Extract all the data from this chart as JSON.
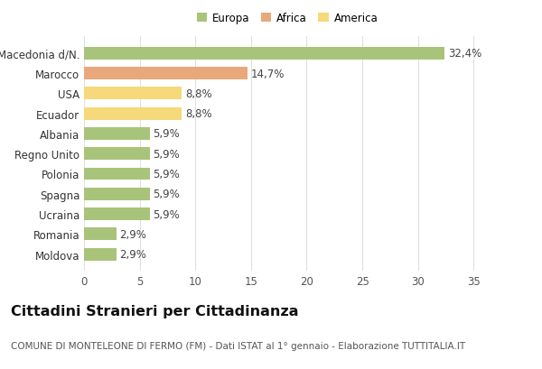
{
  "labels": [
    "Moldova",
    "Romania",
    "Ucraina",
    "Spagna",
    "Polonia",
    "Regno Unito",
    "Albania",
    "Ecuador",
    "USA",
    "Marocco",
    "Macedonia d/N."
  ],
  "values": [
    2.9,
    2.9,
    5.9,
    5.9,
    5.9,
    5.9,
    5.9,
    8.8,
    8.8,
    14.7,
    32.4
  ],
  "colors": [
    "#a8c47a",
    "#a8c47a",
    "#a8c47a",
    "#a8c47a",
    "#a8c47a",
    "#a8c47a",
    "#a8c47a",
    "#f5d97a",
    "#f5d97a",
    "#e8a87c",
    "#a8c47a"
  ],
  "bar_labels": [
    "2,9%",
    "2,9%",
    "5,9%",
    "5,9%",
    "5,9%",
    "5,9%",
    "5,9%",
    "8,8%",
    "8,8%",
    "14,7%",
    "32,4%"
  ],
  "legend": [
    {
      "label": "Europa",
      "color": "#a8c47a"
    },
    {
      "label": "Africa",
      "color": "#e8a87c"
    },
    {
      "label": "America",
      "color": "#f5d97a"
    }
  ],
  "xlim": [
    0,
    37
  ],
  "xticks": [
    0,
    5,
    10,
    15,
    20,
    25,
    30,
    35
  ],
  "title": "Cittadini Stranieri per Cittadinanza",
  "subtitle": "COMUNE DI MONTELEONE DI FERMO (FM) - Dati ISTAT al 1° gennaio - Elaborazione TUTTITALIA.IT",
  "background_color": "#ffffff",
  "grid_color": "#e0e0e0",
  "bar_height": 0.62,
  "label_fontsize": 8.5,
  "tick_fontsize": 8.5,
  "title_fontsize": 11.5,
  "subtitle_fontsize": 7.5
}
